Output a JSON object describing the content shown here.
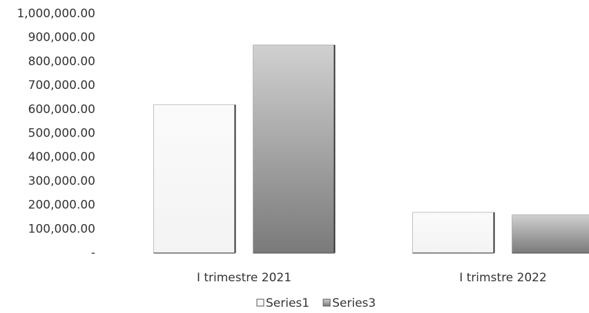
{
  "chart_data": {
    "type": "bar",
    "categories": [
      "I trimestre 2021",
      "I trimstre 2022"
    ],
    "series": [
      {
        "name": "Series1",
        "color": "#f3f3f3",
        "values": [
          620000,
          170000
        ]
      },
      {
        "name": "Series3",
        "color": "#7a7a7a",
        "values": [
          870000,
          160000
        ]
      }
    ],
    "ylim": [
      0,
      1000000
    ],
    "yticks": [
      {
        "value": 0,
        "label": "-"
      },
      {
        "value": 100000,
        "label": "100,000.00"
      },
      {
        "value": 200000,
        "label": "200,000.00"
      },
      {
        "value": 300000,
        "label": "300,000.00"
      },
      {
        "value": 400000,
        "label": "400,000.00"
      },
      {
        "value": 500000,
        "label": "500,000.00"
      },
      {
        "value": 600000,
        "label": "600,000.00"
      },
      {
        "value": 700000,
        "label": "700,000.00"
      },
      {
        "value": 800000,
        "label": "800,000.00"
      },
      {
        "value": 900000,
        "label": "900,000.00"
      },
      {
        "value": 1000000,
        "label": "1,000,000.00"
      }
    ],
    "grid": false,
    "legend": "bottom"
  }
}
